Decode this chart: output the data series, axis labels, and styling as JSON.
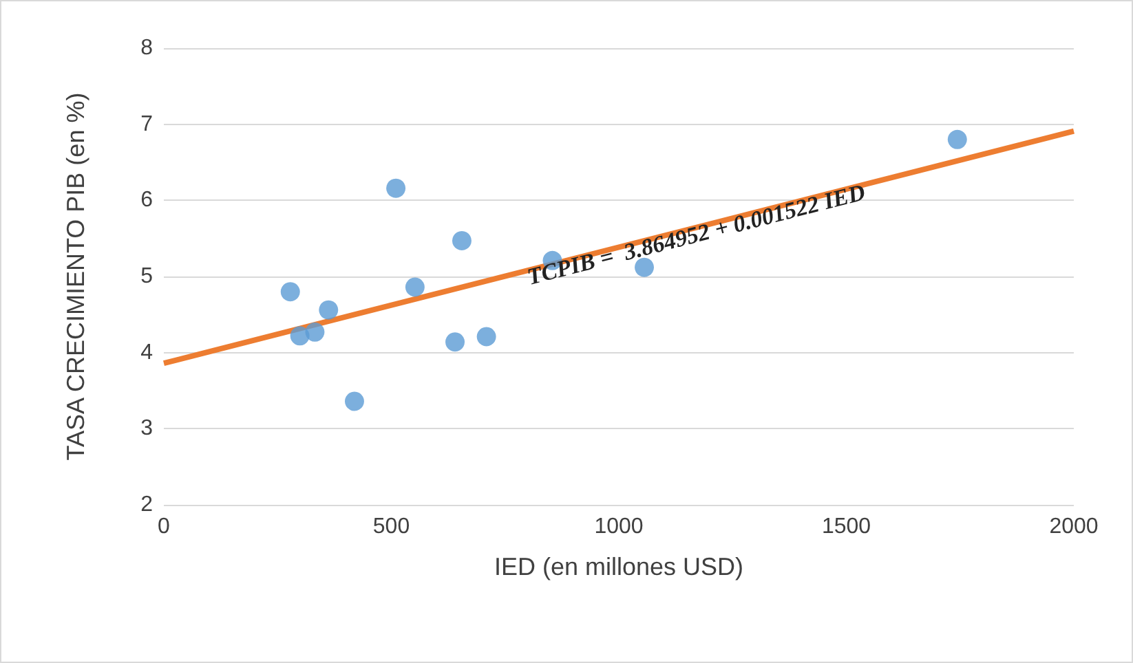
{
  "chart_data": {
    "type": "scatter",
    "xlabel": "IED (en millones USD)",
    "ylabel": "TASA CRECIMIENTO PIB (en %)",
    "xlim": [
      0,
      2000
    ],
    "xticks": [
      0,
      500,
      1000,
      1500,
      2000
    ],
    "ylim": [
      2,
      8
    ],
    "yticks": [
      2,
      3,
      4,
      5,
      6,
      7,
      8
    ],
    "grid": "y",
    "series": [
      {
        "color": "#5b9bd5",
        "marker": "circle",
        "x": [
          278,
          299,
          332,
          362,
          419,
          510,
          552,
          655,
          640,
          709,
          854,
          1056,
          1744
        ],
        "values": [
          4.8,
          4.22,
          4.27,
          4.56,
          3.36,
          6.16,
          4.86,
          5.47,
          4.14,
          4.21,
          5.21,
          5.12,
          6.8
        ]
      },
      {
        "type": "line",
        "color": "#ed7d31",
        "marker": "none",
        "x": [
          0,
          2000
        ],
        "values": [
          3.86,
          6.91
        ]
      }
    ],
    "annotations": [
      {
        "text": "TCPIB =  3.864952 + 0.001522 IED",
        "x": 1170,
        "y": 5.55
      }
    ]
  }
}
